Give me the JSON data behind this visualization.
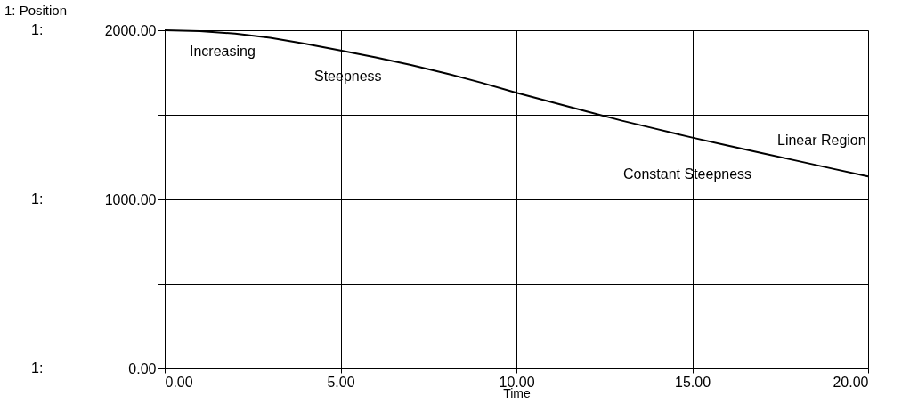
{
  "chart_data": {
    "type": "line",
    "title": "1: Position",
    "xlabel": "Time",
    "x": [
      0,
      1,
      2,
      3,
      4,
      5,
      6,
      7,
      8,
      9,
      10,
      11,
      12,
      13,
      14,
      15,
      16,
      17,
      18,
      19,
      20
    ],
    "series": [
      {
        "color": "#000000",
        "values": [
          2000,
          1995,
          1980,
          1955,
          1920,
          1880,
          1840,
          1795,
          1745,
          1690,
          1630,
          1575,
          1520,
          1465,
          1415,
          1365,
          1318,
          1272,
          1227,
          1181,
          1135
        ]
      }
    ],
    "xlim": [
      0,
      20
    ],
    "ylim": [
      0,
      2000
    ],
    "xticks": [
      {
        "value": 0,
        "label": "0.00"
      },
      {
        "value": 5,
        "label": "5.00"
      },
      {
        "value": 10,
        "label": "10.00"
      },
      {
        "value": 15,
        "label": "15.00"
      },
      {
        "value": 20,
        "label": "20.00"
      }
    ],
    "yticks": [
      {
        "value": 0,
        "label": "0.00"
      },
      {
        "value": 500,
        "label": null
      },
      {
        "value": 1000,
        "label": "1000.00"
      },
      {
        "value": 1500,
        "label": null
      },
      {
        "value": 2000,
        "label": "2000.00"
      }
    ],
    "ylabel": "1:",
    "annotations": [
      "Increasing",
      "Steepness",
      "Constant Steepness",
      "Linear Region"
    ],
    "grid": true,
    "marker": "none",
    "line_style": "solid"
  }
}
